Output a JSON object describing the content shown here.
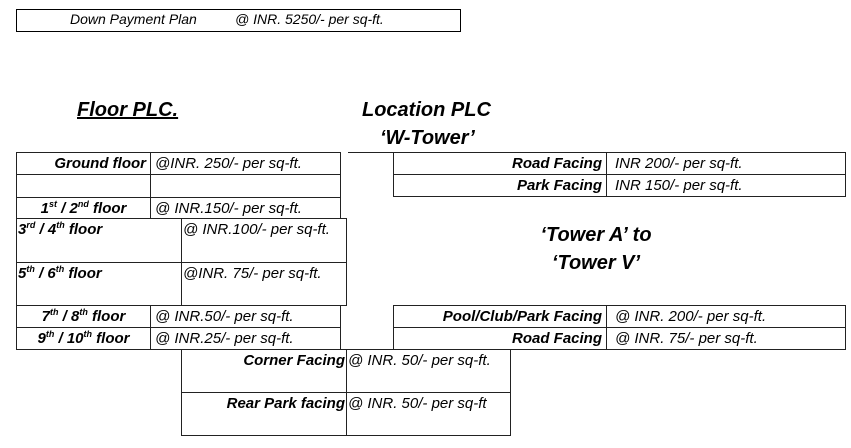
{
  "payment_plan": {
    "label": "Down Payment Plan",
    "value": "@ INR.  5250/- per sq-ft."
  },
  "floor_plc": {
    "title": "Floor PLC.",
    "rows": [
      {
        "label": "Ground floor",
        "value": "@INR. 250/- per sq-ft."
      },
      {
        "label": "",
        "value": ""
      },
      {
        "n1": "1",
        "s1": "st",
        "n2": " / 2",
        "s2": "nd",
        "tail": " floor",
        "value": "@ INR.150/- per sq-ft."
      },
      {
        "n1": "3",
        "s1": "rd",
        "n2": "  / 4",
        "s2": "th",
        "tail": " floor",
        "value": "@ INR.100/- per sq-ft."
      },
      {
        "n1": "5",
        "s1": "th",
        "n2": " / 6",
        "s2": "th",
        "tail": " floor",
        "value": "@INR. 75/- per sq-ft."
      },
      {
        "n1": "7",
        "s1": "th",
        "n2": " / 8",
        "s2": "th",
        "tail": " floor",
        "value": "@ INR.50/- per sq-ft."
      },
      {
        "n1": "9",
        "s1": "th",
        "n2": " / 10",
        "s2": "th",
        "tail": " floor",
        "value": "@ INR.25/- per sq-ft."
      }
    ]
  },
  "location_plc": {
    "title": "Location PLC",
    "w_tower": {
      "title": "‘W-Tower’",
      "rows": [
        {
          "label": "Road Facing",
          "value": "INR 200/- per sq-ft."
        },
        {
          "label": "Park Facing",
          "value": "INR 150/- per sq-ft."
        }
      ]
    },
    "tower_av": {
      "title_line1": "‘Tower A’ to",
      "title_line2": "‘Tower V’",
      "rows": [
        {
          "label": "Pool/Club/Park Facing",
          "value": "@ INR.  200/- per sq-ft."
        },
        {
          "label": "Road Facing",
          "value": "@ INR.  75/- per sq-ft."
        }
      ]
    }
  },
  "other_plc": {
    "rows": [
      {
        "label": "Corner Facing",
        "value": "@ INR.  50/- per sq-ft."
      },
      {
        "label": "Rear Park facing",
        "value": "@ INR.  50/- per sq-ft"
      }
    ]
  }
}
